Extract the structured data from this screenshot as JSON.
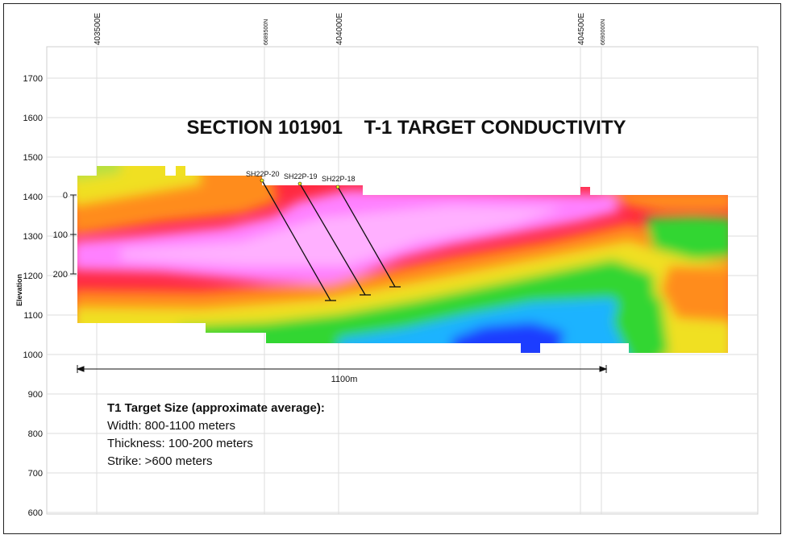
{
  "title": "SECTION 101901    T-1 TARGET CONDUCTIVITY",
  "y_axis_label": "Elevation",
  "elevation_ticks": [
    "1700",
    "1600",
    "1500",
    "1400",
    "1300",
    "1200",
    "1100",
    "1000",
    "900",
    "800",
    "700",
    "600"
  ],
  "easting_labels": [
    "403500E",
    "404000E",
    "404500E"
  ],
  "northing_labels": [
    "6689500N",
    "6690000N"
  ],
  "depth_ticks": [
    "0",
    "100",
    "200"
  ],
  "scale_bar_label": "1100m",
  "drill_holes": [
    "SH22P-20",
    "SH22P-19",
    "SH22P-18"
  ],
  "summary": {
    "heading": "T1 Target Size (approximate average):",
    "lines": [
      "Width: 800-1100 meters",
      "Thickness: 100-200 meters",
      "Strike: >600 meters"
    ]
  },
  "colors": {
    "magenta": "#ff70ff",
    "red": "#ff1a4a",
    "orange": "#ff8c1a",
    "yellow": "#f2f21a",
    "green": "#33d633",
    "cyan": "#1ab3ff",
    "blue": "#1a3cff"
  }
}
